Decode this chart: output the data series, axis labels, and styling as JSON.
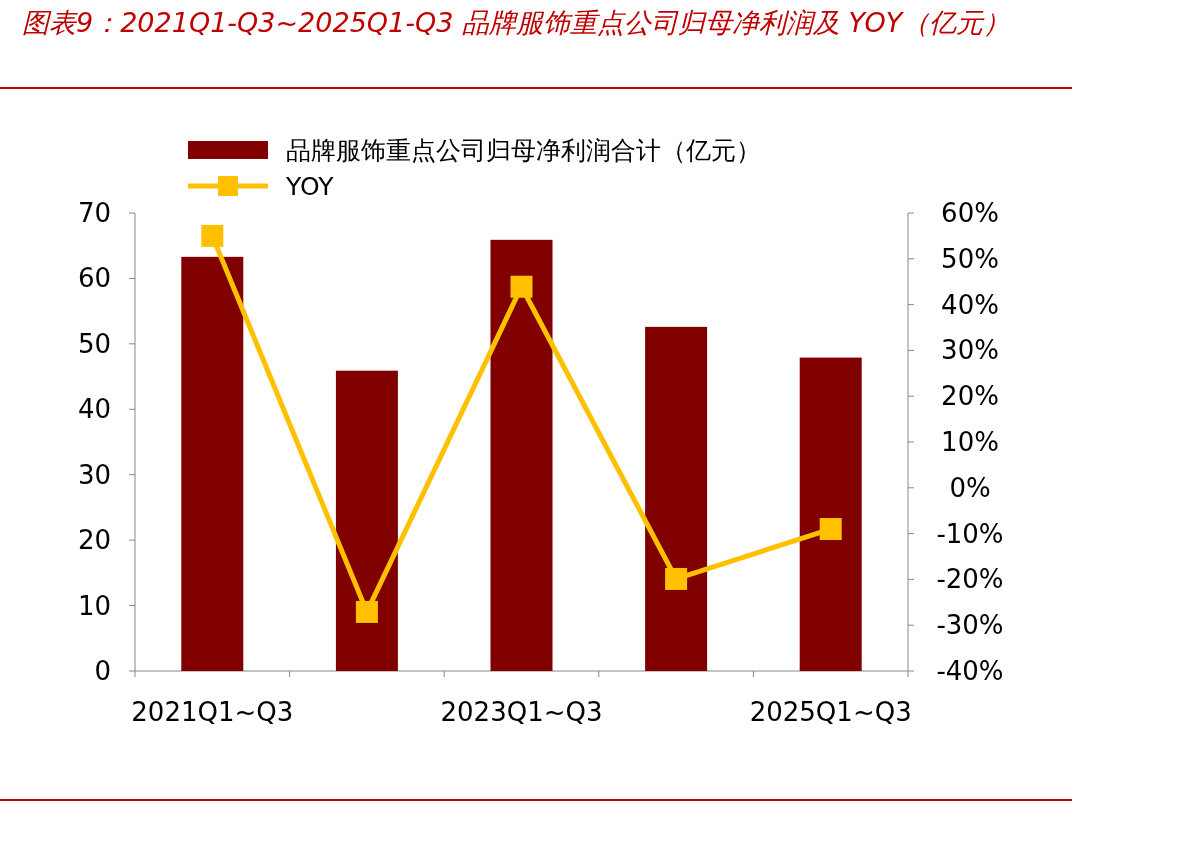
{
  "chart_data": {
    "type": "bar",
    "title": "图表9：2021Q1-Q3~2025Q1-Q3 品牌服饰重点公司归母净利润及 YOY（亿元）",
    "categories": [
      "2021Q1~Q3",
      null,
      "2023Q1~Q3",
      null,
      "2025Q1~Q3"
    ],
    "series": [
      {
        "name": "品牌服饰重点公司归母净利润合计（亿元）",
        "color": "#800000",
        "values": [
          63.3,
          45.9,
          65.9,
          52.6,
          47.9
        ]
      },
      {
        "name": "YOY",
        "type": "line",
        "axis": "y2",
        "color": "#ffc000",
        "marker": "square",
        "values": [
          55.0,
          -27.1,
          43.9,
          -19.9,
          -9.0
        ]
      }
    ],
    "ylim": [
      0,
      70
    ],
    "yticks": [
      0,
      10,
      20,
      30,
      40,
      50,
      60,
      70
    ],
    "y2lim": [
      -40,
      60
    ],
    "y2ticks": [
      {
        "value": -40,
        "label": "-40%"
      },
      {
        "value": -30,
        "label": "-30%"
      },
      {
        "value": -20,
        "label": "-20%"
      },
      {
        "value": -10,
        "label": "-10%"
      },
      {
        "value": 0,
        "label": "0%"
      },
      {
        "value": 10,
        "label": "10%"
      },
      {
        "value": 20,
        "label": "20%"
      },
      {
        "value": 30,
        "label": "30%"
      },
      {
        "value": 40,
        "label": "40%"
      },
      {
        "value": 50,
        "label": "50%"
      },
      {
        "value": 60,
        "label": "60%"
      }
    ],
    "legend": "top"
  }
}
